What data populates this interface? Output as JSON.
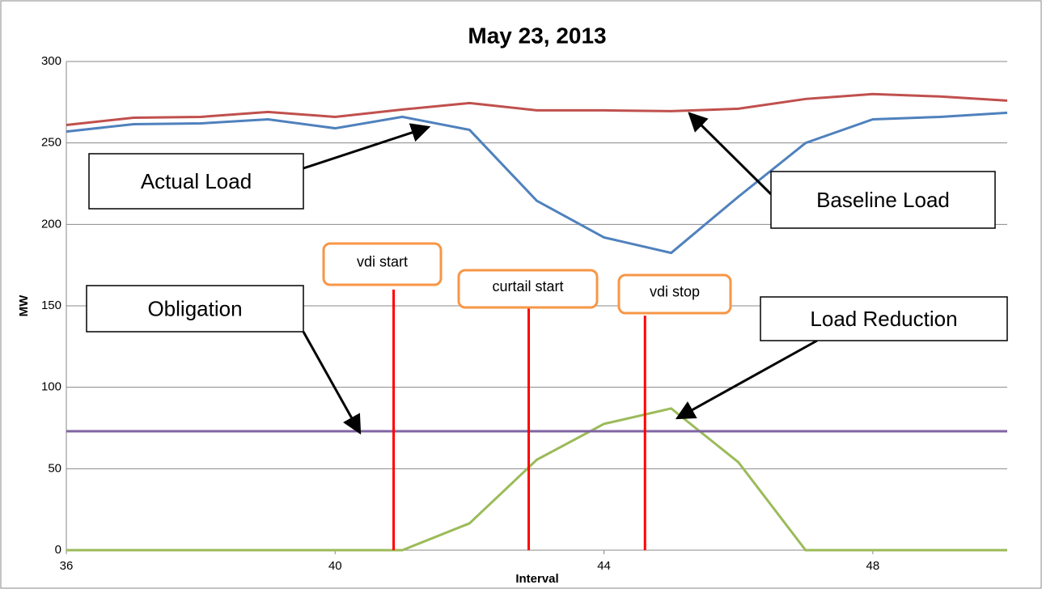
{
  "chart_data": {
    "type": "line",
    "title": "May 23, 2013",
    "x_label": "Interval",
    "y_label": "MW",
    "x": [
      36,
      37,
      38,
      39,
      40,
      41,
      42,
      43,
      44,
      45,
      46,
      47,
      48,
      49,
      50
    ],
    "series": [
      {
        "name": "Baseline Load",
        "color": "#c0504d",
        "values": [
          261,
          265.5,
          266,
          269,
          266,
          270.5,
          274.5,
          270,
          270,
          269.5,
          271,
          277,
          280,
          278.5,
          276
        ]
      },
      {
        "name": "Actual Load",
        "color": "#4f81bd",
        "values": [
          257,
          261.5,
          262,
          264.5,
          259,
          266,
          258,
          214.5,
          192,
          182.5,
          217,
          250,
          264.5,
          266,
          268.5
        ]
      },
      {
        "name": "Load Reduction",
        "color": "#9bbb59",
        "values": [
          0,
          0,
          0,
          0,
          0,
          0,
          16.5,
          55.5,
          77.5,
          87,
          54,
          0,
          0,
          0,
          0
        ]
      },
      {
        "name": "Obligation",
        "color": "#8064a2",
        "values": [
          73,
          73,
          73,
          73,
          73,
          73,
          73,
          73,
          73,
          73,
          73,
          73,
          73,
          73,
          73
        ]
      }
    ],
    "markers": [
      {
        "label": "vdi start",
        "x": 40.87,
        "top": 160
      },
      {
        "label": "curtail start",
        "x": 42.88,
        "top": 148.5
      },
      {
        "label": "vdi stop",
        "x": 44.61,
        "top": 144
      }
    ],
    "xlim": [
      36,
      50
    ],
    "xticks": [
      36,
      40,
      44,
      48
    ],
    "ylim": [
      0,
      300
    ],
    "yticks": [
      0,
      50,
      100,
      150,
      200,
      250,
      300
    ],
    "grid": true
  }
}
